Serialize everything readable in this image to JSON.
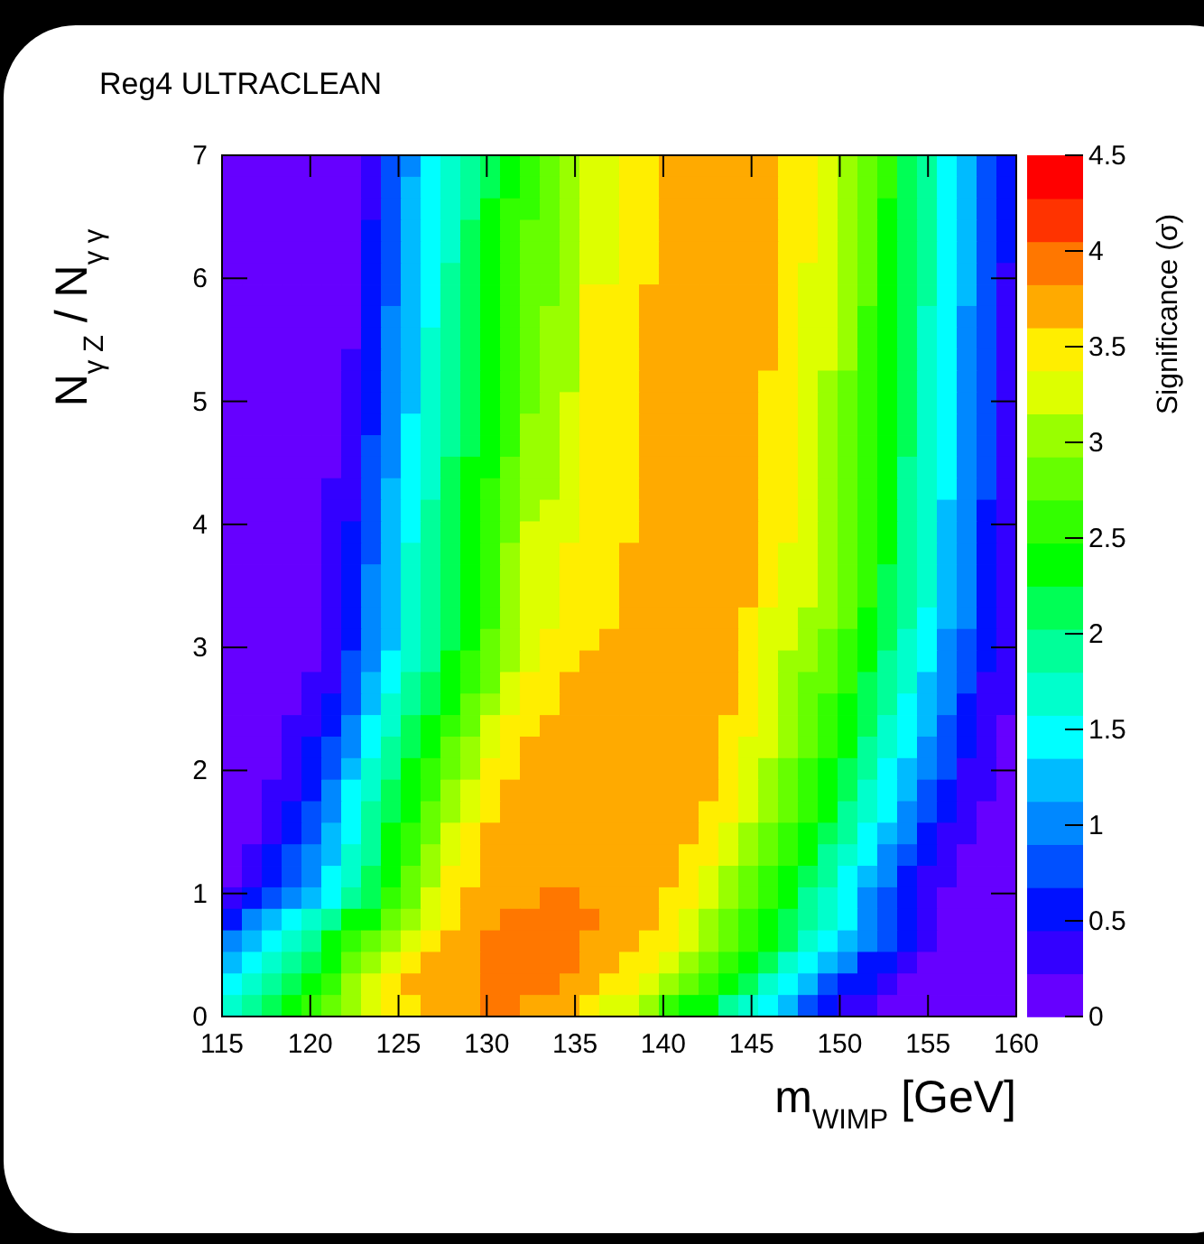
{
  "chart_data": {
    "type": "heatmap",
    "title": "Reg4 ULTRACLEAN",
    "xlabel": "m$_{WIMP}$ [GeV]",
    "ylabel": "N$_{γ Z}$ / N$_{γ γ}$",
    "clabel": "Significance (σ)",
    "xlim": [
      115,
      160
    ],
    "xticks": [
      115,
      120,
      125,
      130,
      135,
      140,
      145,
      150,
      155,
      160
    ],
    "ylim": [
      0,
      7
    ],
    "yticks": [
      0,
      1,
      2,
      3,
      4,
      5,
      6,
      7
    ],
    "clim": [
      0,
      4.5
    ],
    "cticks": [
      0,
      0.5,
      1,
      1.5,
      2,
      2.5,
      3,
      3.5,
      4,
      4.5
    ],
    "colors": [
      "#6600ff",
      "#3300ff",
      "#0011ff",
      "#0050ff",
      "#0088ff",
      "#00bbff",
      "#00ffff",
      "#00ffcc",
      "#00ff99",
      "#00ff55",
      "#00ff00",
      "#33ff00",
      "#66ff00",
      "#99ff00",
      "#ddff00",
      "#ffee00",
      "#ffaa00",
      "#ff7700",
      "#ff3300",
      "#ff0000"
    ],
    "cells": [
      [
        0.1,
        0.1,
        0.1,
        0.1,
        0.1,
        0.1,
        0.1,
        0.3,
        0.8,
        1.0,
        1.5,
        1.7,
        1.9,
        2.1,
        2.4,
        2.6,
        2.8,
        3.0,
        3.3,
        3.3,
        3.5,
        3.5,
        3.7,
        3.7,
        3.7,
        3.7,
        3.7,
        3.7,
        3.5,
        3.5,
        3.3,
        3.0,
        2.8,
        2.6,
        2.1,
        1.9,
        1.5,
        1.2,
        0.8,
        0.6
      ],
      [
        0.1,
        0.1,
        0.1,
        0.1,
        0.1,
        0.1,
        0.1,
        0.3,
        0.8,
        1.2,
        1.5,
        1.7,
        1.9,
        2.1,
        2.4,
        2.6,
        2.8,
        3.0,
        3.3,
        3.3,
        3.5,
        3.5,
        3.7,
        3.7,
        3.7,
        3.7,
        3.7,
        3.7,
        3.5,
        3.5,
        3.3,
        3.0,
        2.8,
        2.6,
        2.1,
        1.9,
        1.5,
        1.2,
        0.8,
        0.6
      ],
      [
        0.1,
        0.1,
        0.1,
        0.1,
        0.1,
        0.1,
        0.1,
        0.3,
        0.8,
        1.2,
        1.5,
        1.7,
        1.9,
        2.4,
        2.6,
        2.6,
        2.8,
        3.0,
        3.3,
        3.3,
        3.5,
        3.5,
        3.7,
        3.7,
        3.7,
        3.7,
        3.7,
        3.7,
        3.5,
        3.5,
        3.3,
        3.0,
        2.8,
        2.4,
        2.1,
        1.9,
        1.5,
        1.2,
        0.8,
        0.6
      ],
      [
        0.1,
        0.1,
        0.1,
        0.1,
        0.1,
        0.1,
        0.1,
        0.6,
        0.8,
        1.2,
        1.5,
        1.7,
        2.1,
        2.4,
        2.6,
        2.8,
        2.8,
        3.0,
        3.3,
        3.3,
        3.5,
        3.5,
        3.7,
        3.7,
        3.7,
        3.7,
        3.7,
        3.7,
        3.5,
        3.5,
        3.3,
        3.0,
        2.8,
        2.4,
        2.1,
        1.9,
        1.5,
        1.2,
        0.8,
        0.6
      ],
      [
        0.1,
        0.1,
        0.1,
        0.1,
        0.1,
        0.1,
        0.1,
        0.6,
        0.8,
        1.2,
        1.5,
        1.7,
        2.1,
        2.4,
        2.6,
        2.8,
        2.8,
        3.0,
        3.3,
        3.3,
        3.5,
        3.5,
        3.7,
        3.7,
        3.7,
        3.7,
        3.7,
        3.7,
        3.5,
        3.5,
        3.3,
        3.0,
        2.8,
        2.4,
        2.1,
        1.9,
        1.5,
        1.2,
        0.8,
        0.6
      ],
      [
        0.1,
        0.1,
        0.1,
        0.1,
        0.1,
        0.1,
        0.1,
        0.6,
        0.8,
        1.2,
        1.5,
        1.9,
        2.1,
        2.4,
        2.6,
        2.8,
        2.8,
        3.0,
        3.3,
        3.3,
        3.5,
        3.5,
        3.7,
        3.7,
        3.7,
        3.7,
        3.7,
        3.7,
        3.5,
        3.3,
        3.3,
        3.0,
        2.8,
        2.4,
        2.1,
        1.9,
        1.5,
        1.2,
        0.8,
        0.3
      ],
      [
        0.1,
        0.1,
        0.1,
        0.1,
        0.1,
        0.1,
        0.1,
        0.6,
        0.8,
        1.2,
        1.5,
        1.9,
        2.1,
        2.4,
        2.6,
        2.8,
        2.8,
        3.0,
        3.5,
        3.5,
        3.5,
        3.7,
        3.7,
        3.7,
        3.7,
        3.7,
        3.7,
        3.7,
        3.5,
        3.3,
        3.3,
        3.0,
        2.8,
        2.4,
        2.1,
        1.9,
        1.5,
        1.2,
        0.8,
        0.3
      ],
      [
        0.1,
        0.1,
        0.1,
        0.1,
        0.1,
        0.1,
        0.1,
        0.6,
        1.0,
        1.2,
        1.5,
        1.9,
        2.1,
        2.4,
        2.6,
        2.8,
        3.0,
        3.0,
        3.5,
        3.5,
        3.5,
        3.7,
        3.7,
        3.7,
        3.7,
        3.7,
        3.7,
        3.7,
        3.5,
        3.3,
        3.3,
        3.0,
        2.6,
        2.4,
        2.1,
        1.7,
        1.5,
        1.0,
        0.8,
        0.3
      ],
      [
        0.1,
        0.1,
        0.1,
        0.1,
        0.1,
        0.1,
        0.1,
        0.6,
        1.0,
        1.2,
        1.7,
        1.9,
        2.1,
        2.4,
        2.6,
        2.8,
        3.0,
        3.0,
        3.5,
        3.5,
        3.5,
        3.7,
        3.7,
        3.7,
        3.7,
        3.7,
        3.7,
        3.7,
        3.5,
        3.3,
        3.3,
        3.0,
        2.6,
        2.4,
        2.1,
        1.7,
        1.5,
        1.0,
        0.8,
        0.3
      ],
      [
        0.1,
        0.1,
        0.1,
        0.1,
        0.1,
        0.1,
        0.3,
        0.6,
        1.0,
        1.2,
        1.7,
        1.9,
        2.1,
        2.4,
        2.6,
        2.8,
        3.0,
        3.0,
        3.5,
        3.5,
        3.5,
        3.7,
        3.7,
        3.7,
        3.7,
        3.7,
        3.7,
        3.7,
        3.5,
        3.3,
        3.3,
        3.0,
        2.6,
        2.4,
        2.1,
        1.7,
        1.5,
        1.0,
        0.8,
        0.3
      ],
      [
        0.1,
        0.1,
        0.1,
        0.1,
        0.1,
        0.1,
        0.3,
        0.6,
        1.0,
        1.2,
        1.7,
        1.9,
        2.1,
        2.4,
        2.6,
        2.8,
        3.0,
        3.0,
        3.5,
        3.5,
        3.5,
        3.7,
        3.7,
        3.7,
        3.7,
        3.7,
        3.7,
        3.5,
        3.5,
        3.3,
        3.0,
        2.8,
        2.6,
        2.4,
        2.1,
        1.7,
        1.5,
        1.0,
        0.8,
        0.3
      ],
      [
        0.1,
        0.1,
        0.1,
        0.1,
        0.1,
        0.1,
        0.3,
        0.6,
        1.0,
        1.2,
        1.7,
        1.9,
        2.1,
        2.4,
        2.6,
        2.8,
        3.0,
        3.3,
        3.5,
        3.5,
        3.5,
        3.7,
        3.7,
        3.7,
        3.7,
        3.7,
        3.7,
        3.5,
        3.5,
        3.3,
        3.0,
        2.8,
        2.6,
        2.4,
        2.1,
        1.7,
        1.5,
        1.0,
        0.8,
        0.3
      ],
      [
        0.1,
        0.1,
        0.1,
        0.1,
        0.1,
        0.1,
        0.3,
        0.6,
        1.0,
        1.5,
        1.7,
        1.9,
        2.1,
        2.4,
        2.6,
        3.0,
        3.0,
        3.3,
        3.5,
        3.5,
        3.5,
        3.7,
        3.7,
        3.7,
        3.7,
        3.7,
        3.7,
        3.5,
        3.5,
        3.3,
        3.0,
        2.8,
        2.6,
        2.4,
        2.1,
        1.7,
        1.5,
        1.0,
        0.8,
        0.3
      ],
      [
        0.1,
        0.1,
        0.1,
        0.1,
        0.1,
        0.1,
        0.3,
        0.8,
        1.0,
        1.5,
        1.7,
        1.9,
        2.1,
        2.4,
        2.6,
        3.0,
        3.0,
        3.3,
        3.5,
        3.5,
        3.5,
        3.7,
        3.7,
        3.7,
        3.7,
        3.7,
        3.7,
        3.5,
        3.5,
        3.3,
        3.0,
        2.8,
        2.6,
        2.4,
        2.1,
        1.7,
        1.5,
        1.0,
        0.8,
        0.3
      ],
      [
        0.1,
        0.1,
        0.1,
        0.1,
        0.1,
        0.1,
        0.3,
        0.8,
        1.0,
        1.5,
        1.7,
        2.1,
        2.4,
        2.4,
        2.8,
        3.0,
        3.0,
        3.3,
        3.5,
        3.5,
        3.5,
        3.7,
        3.7,
        3.7,
        3.7,
        3.7,
        3.7,
        3.5,
        3.5,
        3.3,
        3.0,
        2.8,
        2.6,
        2.4,
        1.9,
        1.7,
        1.5,
        1.0,
        0.8,
        0.3
      ],
      [
        0.1,
        0.1,
        0.1,
        0.1,
        0.1,
        0.3,
        0.3,
        0.8,
        1.2,
        1.5,
        1.7,
        2.1,
        2.4,
        2.6,
        2.8,
        3.0,
        3.0,
        3.3,
        3.5,
        3.5,
        3.5,
        3.7,
        3.7,
        3.7,
        3.7,
        3.7,
        3.7,
        3.5,
        3.5,
        3.3,
        3.0,
        2.8,
        2.6,
        2.4,
        1.9,
        1.7,
        1.5,
        1.0,
        0.8,
        0.3
      ],
      [
        0.1,
        0.1,
        0.1,
        0.1,
        0.1,
        0.3,
        0.3,
        0.8,
        1.2,
        1.5,
        1.9,
        2.1,
        2.4,
        2.6,
        2.8,
        3.0,
        3.3,
        3.3,
        3.5,
        3.5,
        3.5,
        3.7,
        3.7,
        3.7,
        3.7,
        3.7,
        3.7,
        3.5,
        3.5,
        3.3,
        3.0,
        2.8,
        2.6,
        2.4,
        1.9,
        1.7,
        1.2,
        1.0,
        0.6,
        0.3
      ],
      [
        0.1,
        0.1,
        0.1,
        0.1,
        0.1,
        0.3,
        0.6,
        0.8,
        1.2,
        1.5,
        1.9,
        2.1,
        2.4,
        2.6,
        2.8,
        3.3,
        3.3,
        3.3,
        3.5,
        3.5,
        3.5,
        3.7,
        3.7,
        3.7,
        3.7,
        3.7,
        3.7,
        3.5,
        3.5,
        3.3,
        3.0,
        2.8,
        2.6,
        2.4,
        1.9,
        1.7,
        1.2,
        1.0,
        0.6,
        0.3
      ],
      [
        0.1,
        0.1,
        0.1,
        0.1,
        0.1,
        0.3,
        0.6,
        0.8,
        1.2,
        1.7,
        1.9,
        2.1,
        2.4,
        2.6,
        3.0,
        3.3,
        3.3,
        3.5,
        3.5,
        3.5,
        3.7,
        3.7,
        3.7,
        3.7,
        3.7,
        3.7,
        3.7,
        3.5,
        3.3,
        3.3,
        3.0,
        2.8,
        2.6,
        2.4,
        1.9,
        1.7,
        1.2,
        1.0,
        0.6,
        0.3
      ],
      [
        0.1,
        0.1,
        0.1,
        0.1,
        0.1,
        0.3,
        0.6,
        1.0,
        1.2,
        1.7,
        1.9,
        2.1,
        2.4,
        2.6,
        3.0,
        3.3,
        3.3,
        3.5,
        3.5,
        3.5,
        3.7,
        3.7,
        3.7,
        3.7,
        3.7,
        3.7,
        3.7,
        3.5,
        3.3,
        3.3,
        3.0,
        2.8,
        2.6,
        2.1,
        1.9,
        1.7,
        1.2,
        1.0,
        0.6,
        0.3
      ],
      [
        0.1,
        0.1,
        0.1,
        0.1,
        0.1,
        0.3,
        0.6,
        1.0,
        1.2,
        1.7,
        1.9,
        2.1,
        2.4,
        2.6,
        3.0,
        3.3,
        3.3,
        3.5,
        3.5,
        3.5,
        3.7,
        3.7,
        3.7,
        3.7,
        3.7,
        3.7,
        3.7,
        3.5,
        3.3,
        3.3,
        3.0,
        2.8,
        2.6,
        2.1,
        1.9,
        1.7,
        1.2,
        1.0,
        0.6,
        0.3
      ],
      [
        0.1,
        0.1,
        0.1,
        0.1,
        0.1,
        0.3,
        0.6,
        1.0,
        1.2,
        1.7,
        1.9,
        2.1,
        2.4,
        2.6,
        3.0,
        3.3,
        3.3,
        3.5,
        3.5,
        3.5,
        3.7,
        3.7,
        3.7,
        3.7,
        3.7,
        3.7,
        3.5,
        3.3,
        3.3,
        3.0,
        3.0,
        2.8,
        2.4,
        2.1,
        1.9,
        1.5,
        1.2,
        1.0,
        0.6,
        0.3
      ],
      [
        0.1,
        0.1,
        0.1,
        0.1,
        0.1,
        0.3,
        0.6,
        1.0,
        1.2,
        1.7,
        1.9,
        2.1,
        2.4,
        2.8,
        3.0,
        3.3,
        3.5,
        3.5,
        3.5,
        3.7,
        3.7,
        3.7,
        3.7,
        3.7,
        3.7,
        3.7,
        3.5,
        3.3,
        3.3,
        3.0,
        2.8,
        2.6,
        2.4,
        2.1,
        1.7,
        1.5,
        1.0,
        0.8,
        0.6,
        0.3
      ],
      [
        0.1,
        0.1,
        0.1,
        0.1,
        0.1,
        0.3,
        0.8,
        1.0,
        1.5,
        1.7,
        1.9,
        2.4,
        2.6,
        2.8,
        3.0,
        3.3,
        3.5,
        3.5,
        3.7,
        3.7,
        3.7,
        3.7,
        3.7,
        3.7,
        3.7,
        3.7,
        3.5,
        3.3,
        3.0,
        3.0,
        2.8,
        2.6,
        2.4,
        1.9,
        1.7,
        1.5,
        1.0,
        0.8,
        0.6,
        0.3
      ],
      [
        0.1,
        0.1,
        0.1,
        0.1,
        0.3,
        0.3,
        0.8,
        1.2,
        1.5,
        1.9,
        2.1,
        2.4,
        2.6,
        2.8,
        3.3,
        3.5,
        3.5,
        3.7,
        3.7,
        3.7,
        3.7,
        3.7,
        3.7,
        3.7,
        3.7,
        3.7,
        3.5,
        3.3,
        3.0,
        2.8,
        2.8,
        2.6,
        2.1,
        1.9,
        1.7,
        1.2,
        1.0,
        0.8,
        0.3,
        0.3
      ],
      [
        0.1,
        0.1,
        0.1,
        0.1,
        0.3,
        0.6,
        0.8,
        1.2,
        1.7,
        1.9,
        2.1,
        2.4,
        2.8,
        3.0,
        3.3,
        3.5,
        3.5,
        3.7,
        3.7,
        3.7,
        3.7,
        3.7,
        3.7,
        3.7,
        3.7,
        3.7,
        3.5,
        3.3,
        3.0,
        2.8,
        2.6,
        2.4,
        2.1,
        1.9,
        1.5,
        1.2,
        1.0,
        0.6,
        0.3,
        0.3
      ],
      [
        0.1,
        0.1,
        0.1,
        0.3,
        0.3,
        0.6,
        1.0,
        1.5,
        1.7,
        2.1,
        2.4,
        2.6,
        2.8,
        3.3,
        3.5,
        3.5,
        3.7,
        3.7,
        3.7,
        3.7,
        3.7,
        3.7,
        3.7,
        3.7,
        3.7,
        3.5,
        3.5,
        3.3,
        3.0,
        2.8,
        2.6,
        2.4,
        2.1,
        1.7,
        1.5,
        1.2,
        0.8,
        0.6,
        0.3,
        0.1
      ],
      [
        0.1,
        0.1,
        0.1,
        0.3,
        0.6,
        0.8,
        1.0,
        1.5,
        1.9,
        2.1,
        2.4,
        2.8,
        3.0,
        3.3,
        3.5,
        3.7,
        3.7,
        3.7,
        3.7,
        3.7,
        3.7,
        3.7,
        3.7,
        3.7,
        3.7,
        3.5,
        3.3,
        3.3,
        3.0,
        2.8,
        2.6,
        2.4,
        1.9,
        1.7,
        1.5,
        1.0,
        0.8,
        0.6,
        0.3,
        0.1
      ],
      [
        0.1,
        0.1,
        0.1,
        0.3,
        0.6,
        0.8,
        1.2,
        1.7,
        1.9,
        2.4,
        2.6,
        2.8,
        3.0,
        3.5,
        3.5,
        3.7,
        3.7,
        3.7,
        3.7,
        3.7,
        3.7,
        3.7,
        3.7,
        3.7,
        3.7,
        3.5,
        3.3,
        3.0,
        2.8,
        2.6,
        2.4,
        2.1,
        1.9,
        1.5,
        1.2,
        1.0,
        0.8,
        0.3,
        0.3,
        0.1
      ],
      [
        0.1,
        0.1,
        0.3,
        0.3,
        0.6,
        1.0,
        1.5,
        1.7,
        2.1,
        2.4,
        2.6,
        3.0,
        3.3,
        3.5,
        3.7,
        3.7,
        3.7,
        3.7,
        3.7,
        3.7,
        3.7,
        3.7,
        3.7,
        3.7,
        3.7,
        3.5,
        3.3,
        3.0,
        2.8,
        2.6,
        2.4,
        2.1,
        1.7,
        1.5,
        1.2,
        0.8,
        0.6,
        0.3,
        0.3,
        0.1
      ],
      [
        0.1,
        0.1,
        0.3,
        0.6,
        0.8,
        1.0,
        1.5,
        1.9,
        2.1,
        2.4,
        2.8,
        3.0,
        3.3,
        3.5,
        3.7,
        3.7,
        3.7,
        3.7,
        3.7,
        3.7,
        3.7,
        3.7,
        3.7,
        3.7,
        3.5,
        3.5,
        3.3,
        3.0,
        2.8,
        2.6,
        2.4,
        1.9,
        1.7,
        1.5,
        1.0,
        0.8,
        0.6,
        0.3,
        0.1,
        0.1
      ],
      [
        0.1,
        0.1,
        0.3,
        0.6,
        0.8,
        1.2,
        1.5,
        1.9,
        2.4,
        2.6,
        2.8,
        3.3,
        3.5,
        3.7,
        3.7,
        3.7,
        3.7,
        3.7,
        3.7,
        3.7,
        3.7,
        3.7,
        3.7,
        3.7,
        3.5,
        3.3,
        3.0,
        2.8,
        2.6,
        2.4,
        2.1,
        1.9,
        1.5,
        1.2,
        1.0,
        0.6,
        0.3,
        0.3,
        0.1,
        0.1
      ],
      [
        0.1,
        0.3,
        0.6,
        0.8,
        1.0,
        1.2,
        1.7,
        1.9,
        2.4,
        2.6,
        3.0,
        3.3,
        3.5,
        3.7,
        3.7,
        3.7,
        3.7,
        3.7,
        3.7,
        3.7,
        3.7,
        3.7,
        3.7,
        3.5,
        3.5,
        3.3,
        3.0,
        2.8,
        2.6,
        2.4,
        1.9,
        1.7,
        1.5,
        1.0,
        0.8,
        0.6,
        0.3,
        0.1,
        0.1,
        0.1
      ],
      [
        0.1,
        0.3,
        0.6,
        0.8,
        1.0,
        1.5,
        1.7,
        2.1,
        2.4,
        2.8,
        3.0,
        3.5,
        3.5,
        3.7,
        3.7,
        3.7,
        3.7,
        3.7,
        3.7,
        3.7,
        3.7,
        3.7,
        3.7,
        3.5,
        3.3,
        3.0,
        2.8,
        2.6,
        2.4,
        2.1,
        1.9,
        1.5,
        1.2,
        1.0,
        0.6,
        0.3,
        0.3,
        0.1,
        0.1,
        0.1
      ],
      [
        0.3,
        0.6,
        0.8,
        1.0,
        1.2,
        1.5,
        1.9,
        2.1,
        2.6,
        2.8,
        3.3,
        3.5,
        3.7,
        3.7,
        3.7,
        3.7,
        3.9,
        3.9,
        3.7,
        3.7,
        3.7,
        3.7,
        3.5,
        3.5,
        3.3,
        3.0,
        2.8,
        2.6,
        2.4,
        1.9,
        1.7,
        1.5,
        1.0,
        0.8,
        0.6,
        0.3,
        0.1,
        0.1,
        0.1,
        0.1
      ],
      [
        0.6,
        1.0,
        1.2,
        1.5,
        1.7,
        1.9,
        2.4,
        2.4,
        2.8,
        3.0,
        3.3,
        3.5,
        3.7,
        3.7,
        3.9,
        3.9,
        3.9,
        3.9,
        3.9,
        3.7,
        3.7,
        3.7,
        3.5,
        3.3,
        3.0,
        2.8,
        2.6,
        2.4,
        2.1,
        1.9,
        1.7,
        1.5,
        1.0,
        0.8,
        0.6,
        0.3,
        0.1,
        0.1,
        0.1,
        0.1
      ],
      [
        1.0,
        1.2,
        1.5,
        1.7,
        1.9,
        2.4,
        2.6,
        2.8,
        3.0,
        3.3,
        3.5,
        3.7,
        3.7,
        3.9,
        3.9,
        3.9,
        3.9,
        3.9,
        3.7,
        3.7,
        3.7,
        3.5,
        3.5,
        3.3,
        3.0,
        2.8,
        2.6,
        2.4,
        2.1,
        1.7,
        1.5,
        1.2,
        1.0,
        0.8,
        0.6,
        0.3,
        0.1,
        0.1,
        0.1,
        0.1
      ],
      [
        1.2,
        1.5,
        1.7,
        1.9,
        2.1,
        2.4,
        2.8,
        3.0,
        3.3,
        3.5,
        3.7,
        3.7,
        3.7,
        3.9,
        3.9,
        3.9,
        3.9,
        3.9,
        3.7,
        3.7,
        3.5,
        3.5,
        3.3,
        3.0,
        2.8,
        2.6,
        2.4,
        2.1,
        1.7,
        1.5,
        1.2,
        1.0,
        0.6,
        0.6,
        0.3,
        0.1,
        0.1,
        0.1,
        0.1,
        0.1
      ],
      [
        1.5,
        1.7,
        1.9,
        2.1,
        2.4,
        2.6,
        3.0,
        3.3,
        3.5,
        3.7,
        3.7,
        3.7,
        3.7,
        3.9,
        3.9,
        3.9,
        3.9,
        3.7,
        3.7,
        3.5,
        3.5,
        3.3,
        3.0,
        2.8,
        2.6,
        2.4,
        2.1,
        1.7,
        1.5,
        1.2,
        0.8,
        0.6,
        0.6,
        0.3,
        0.1,
        0.1,
        0.1,
        0.1,
        0.1,
        0.1
      ],
      [
        1.7,
        1.9,
        2.1,
        2.4,
        2.6,
        2.8,
        3.0,
        3.3,
        3.5,
        3.5,
        3.7,
        3.7,
        3.7,
        3.9,
        3.9,
        3.7,
        3.7,
        3.7,
        3.5,
        3.3,
        3.3,
        3.0,
        2.6,
        2.4,
        2.4,
        1.9,
        1.7,
        1.5,
        1.2,
        0.8,
        0.6,
        0.3,
        0.3,
        0.1,
        0.1,
        0.1,
        0.1,
        0.1,
        0.1,
        0.1
      ]
    ]
  }
}
